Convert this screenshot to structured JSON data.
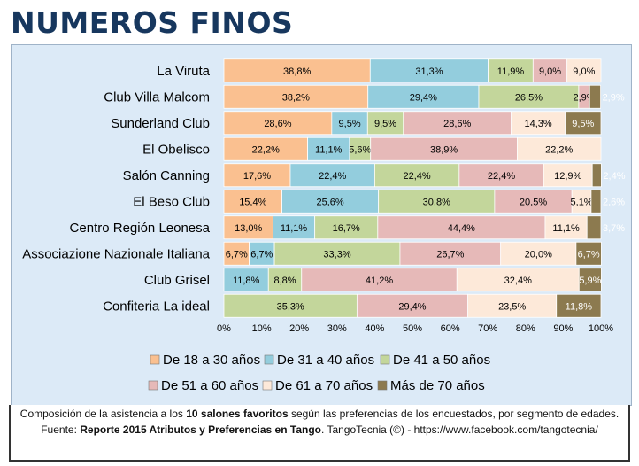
{
  "title": "NUMEROS FINOS",
  "caption": {
    "part1": "Composición de la asistencia a los ",
    "bold1": "10 salones favoritos",
    "part2": " según las preferencias de los encuestados, por segmento de edades. Fuente: ",
    "bold2": "Reporte 2015 Atributos y Preferencias en Tango",
    "part3": ". TangoTecnia  (©) - https://www.facebook.com/tangotecnia/"
  },
  "chart_data": {
    "type": "bar",
    "orientation": "horizontal",
    "stacked": "100%",
    "categories": [
      "La Viruta",
      "Club Villa Malcom",
      "Sunderland Club",
      "El Obelisco",
      "Salón Canning",
      "El Beso Club",
      "Centro Región Leonesa",
      "Associazione Nazionale Italiana",
      "Club Grisel",
      "Confiteria La ideal"
    ],
    "series": [
      {
        "name": "De 18 a 30 años",
        "color": "#fac090",
        "values": [
          38.8,
          38.2,
          28.6,
          22.2,
          17.6,
          15.4,
          13.0,
          6.7,
          0,
          0
        ]
      },
      {
        "name": "De 31 a 40 años",
        "color": "#93cddd",
        "values": [
          31.3,
          29.4,
          9.5,
          11.1,
          22.4,
          25.6,
          11.1,
          6.7,
          11.8,
          0
        ]
      },
      {
        "name": "De 41 a 50 años",
        "color": "#c3d69b",
        "values": [
          11.9,
          26.5,
          9.5,
          5.6,
          22.4,
          30.8,
          16.7,
          33.3,
          8.8,
          35.3
        ]
      },
      {
        "name": "De 51 a 60 años",
        "color": "#e6b9b8",
        "values": [
          9.0,
          2.9,
          28.6,
          38.9,
          22.4,
          20.5,
          44.4,
          26.7,
          41.2,
          29.4
        ]
      },
      {
        "name": "De 61 a 70 años",
        "color": "#fde9d9",
        "values": [
          9.0,
          0,
          14.3,
          22.2,
          12.9,
          5.1,
          11.1,
          20.0,
          32.4,
          23.5
        ]
      },
      {
        "name": "Más de 70 años",
        "color": "#8c7a4f",
        "values": [
          0,
          2.9,
          9.5,
          0,
          2.4,
          2.6,
          3.7,
          6.7,
          5.9,
          11.8
        ]
      }
    ],
    "value_labels": [
      [
        "38,8%",
        "31,3%",
        "11,9%",
        "9,0%",
        "9,0%",
        ""
      ],
      [
        "38,2%",
        "29,4%",
        "26,5%",
        "2,9%",
        "",
        "2,9%"
      ],
      [
        "28,6%",
        "9,5%",
        "9,5%",
        "28,6%",
        "14,3%",
        "9,5%"
      ],
      [
        "22,2%",
        "11,1%",
        "5,6%",
        "38,9%",
        "22,2%",
        ""
      ],
      [
        "17,6%",
        "22,4%",
        "22,4%",
        "22,4%",
        "12,9%",
        "2,4%"
      ],
      [
        "15,4%",
        "25,6%",
        "30,8%",
        "20,5%",
        "5,1%",
        "2,6%"
      ],
      [
        "13,0%",
        "11,1%",
        "16,7%",
        "44,4%",
        "11,1%",
        "3,7%"
      ],
      [
        "6,7%",
        "6,7%",
        "33,3%",
        "26,7%",
        "20,0%",
        "6,7%"
      ],
      [
        "",
        "11,8%",
        "8,8%",
        "41,2%",
        "32,4%",
        "5,9%"
      ],
      [
        "",
        "",
        "35,3%",
        "29,4%",
        "23,5%",
        "11,8%"
      ]
    ],
    "xlim": [
      0,
      100
    ],
    "x_ticks": [
      "0%",
      "10%",
      "20%",
      "30%",
      "40%",
      "50%",
      "60%",
      "70%",
      "80%",
      "90%",
      "100%"
    ],
    "legend_rows": [
      [
        "De 18 a 30 años",
        "De 31 a 40 años",
        "De 41 a 50 años"
      ],
      [
        "De 51 a 60 años",
        "De 61 a 70 años",
        "Más de 70 años"
      ]
    ],
    "legend_placement": "bottom",
    "grid": false
  }
}
